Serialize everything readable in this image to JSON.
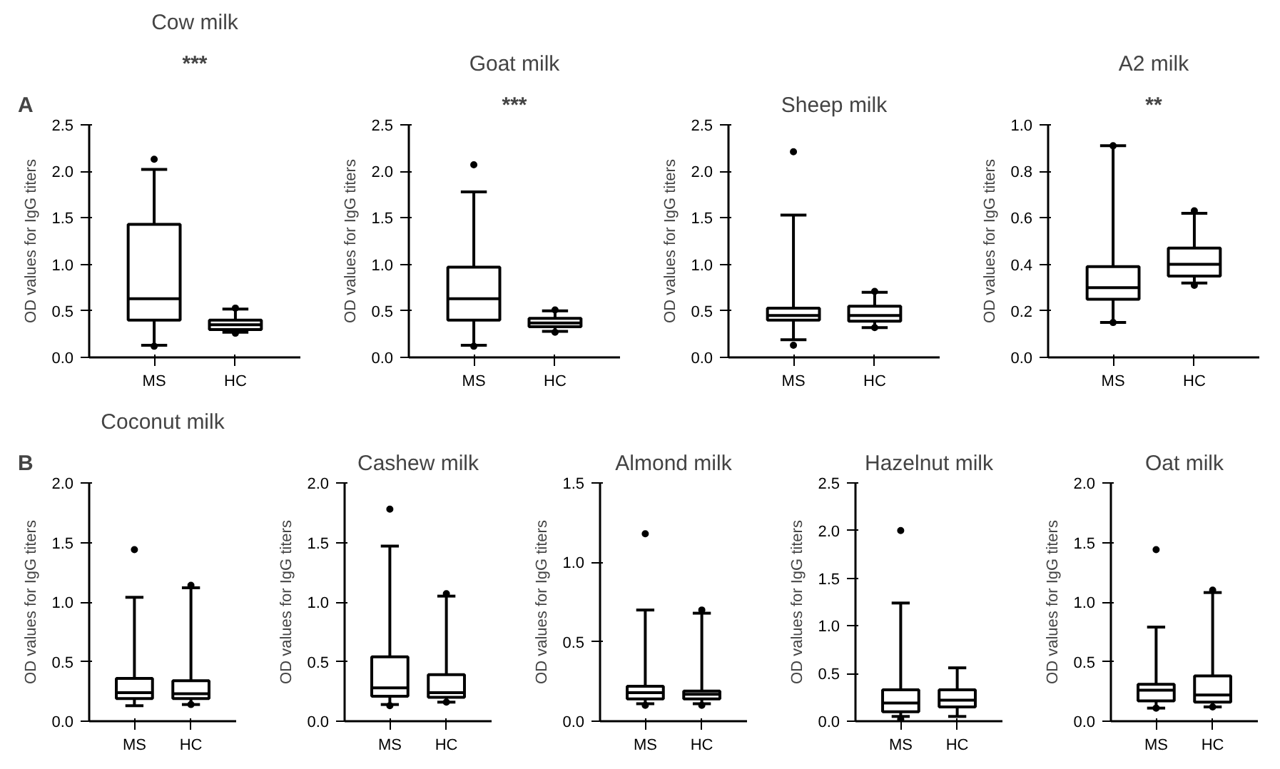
{
  "chart_data": [
    {
      "type": "box",
      "title": "Cow milk",
      "ylabel": "OD values for IgG titers",
      "categories": [
        "MS",
        "HC"
      ],
      "ylim": [
        0,
        2.5
      ],
      "yticks": [
        {
          "value": 0,
          "label": "0.0"
        },
        0.5,
        {
          "value": 1,
          "label": "1.0"
        },
        1.5,
        {
          "value": 2,
          "label": "2.0"
        },
        2.5
      ],
      "grid": false,
      "annotations": [
        "A",
        "***"
      ],
      "boxes": [
        {
          "low": 0.13,
          "q1": 0.4,
          "median": 0.63,
          "q3": 1.43,
          "high": 2.02,
          "outliers": [
            2.13,
            0.12
          ]
        },
        {
          "low": 0.27,
          "q1": 0.3,
          "median": 0.35,
          "q3": 0.4,
          "high": 0.52,
          "outliers": [
            0.53,
            0.26
          ]
        }
      ]
    },
    {
      "type": "box",
      "title": "Goat milk",
      "ylabel": "OD values for IgG titers",
      "categories": [
        "MS",
        "HC"
      ],
      "ylim": [
        0,
        2.5
      ],
      "yticks": [
        {
          "value": 0,
          "label": "0.0"
        },
        0.5,
        {
          "value": 1,
          "label": "1.0"
        },
        1.5,
        {
          "value": 2,
          "label": "2.0"
        },
        2.5
      ],
      "grid": false,
      "annotations": [
        "***"
      ],
      "boxes": [
        {
          "low": 0.13,
          "q1": 0.4,
          "median": 0.63,
          "q3": 0.97,
          "high": 1.78,
          "outliers": [
            2.07,
            0.12
          ]
        },
        {
          "low": 0.28,
          "q1": 0.33,
          "median": 0.37,
          "q3": 0.42,
          "high": 0.5,
          "outliers": [
            0.51,
            0.27
          ]
        }
      ]
    },
    {
      "type": "box",
      "title": "Sheep milk",
      "ylabel": "OD values for IgG titers",
      "categories": [
        "MS",
        "HC"
      ],
      "ylim": [
        0,
        2.5
      ],
      "yticks": [
        {
          "value": 0,
          "label": "0.0"
        },
        0.5,
        {
          "value": 1,
          "label": "1.0"
        },
        1.5,
        {
          "value": 2,
          "label": "2.0"
        },
        2.5
      ],
      "grid": false,
      "boxes": [
        {
          "low": 0.19,
          "q1": 0.4,
          "median": 0.45,
          "q3": 0.53,
          "high": 1.53,
          "outliers": [
            2.21,
            0.13
          ]
        },
        {
          "low": 0.32,
          "q1": 0.39,
          "median": 0.45,
          "q3": 0.55,
          "high": 0.7,
          "outliers": [
            0.71,
            0.32
          ]
        }
      ]
    },
    {
      "type": "box",
      "title": "A2 milk",
      "ylabel": "OD values for IgG titers",
      "categories": [
        "MS",
        "HC"
      ],
      "ylim": [
        0,
        1.0
      ],
      "yticks": [
        {
          "value": 0,
          "label": "0.0"
        },
        0.2,
        0.4,
        0.6,
        0.8,
        {
          "value": 1,
          "label": "1.0"
        }
      ],
      "grid": false,
      "annotations": [
        "**"
      ],
      "boxes": [
        {
          "low": 0.15,
          "q1": 0.25,
          "median": 0.3,
          "q3": 0.39,
          "high": 0.91,
          "outliers": [
            0.91,
            0.15
          ]
        },
        {
          "low": 0.32,
          "q1": 0.35,
          "median": 0.4,
          "q3": 0.47,
          "high": 0.62,
          "outliers": [
            0.63,
            0.31
          ]
        }
      ]
    },
    {
      "type": "box",
      "title": "Coconut milk",
      "ylabel": "OD values for IgG titers",
      "categories": [
        "MS",
        "HC"
      ],
      "ylim": [
        0,
        2.0
      ],
      "yticks": [
        {
          "value": 0,
          "label": "0.0"
        },
        0.5,
        {
          "value": 1,
          "label": "1.0"
        },
        1.5,
        {
          "value": 2,
          "label": "2.0"
        }
      ],
      "grid": false,
      "annotations": [
        "B"
      ],
      "boxes": [
        {
          "low": 0.13,
          "q1": 0.19,
          "median": 0.24,
          "q3": 0.36,
          "high": 1.04,
          "outliers": [
            1.44
          ]
        },
        {
          "low": 0.14,
          "q1": 0.19,
          "median": 0.23,
          "q3": 0.34,
          "high": 1.12,
          "outliers": [
            1.14,
            0.14
          ]
        }
      ]
    },
    {
      "type": "box",
      "title": "Cashew milk",
      "ylabel": "OD values for IgG titers",
      "categories": [
        "MS",
        "HC"
      ],
      "ylim": [
        0,
        2.0
      ],
      "yticks": [
        {
          "value": 0,
          "label": "0.0"
        },
        0.5,
        {
          "value": 1,
          "label": "1.0"
        },
        1.5,
        {
          "value": 2,
          "label": "2.0"
        }
      ],
      "grid": false,
      "boxes": [
        {
          "low": 0.14,
          "q1": 0.21,
          "median": 0.28,
          "q3": 0.54,
          "high": 1.47,
          "outliers": [
            1.78,
            0.13
          ]
        },
        {
          "low": 0.16,
          "q1": 0.2,
          "median": 0.24,
          "q3": 0.39,
          "high": 1.05,
          "outliers": [
            1.07,
            0.16
          ]
        }
      ]
    },
    {
      "type": "box",
      "title": "Almond milk",
      "ylabel": "OD values for IgG titers",
      "categories": [
        "MS",
        "HC"
      ],
      "ylim": [
        0,
        1.5
      ],
      "yticks": [
        {
          "value": 0,
          "label": "0.0"
        },
        0.5,
        {
          "value": 1,
          "label": "1.0"
        },
        1.5
      ],
      "grid": false,
      "boxes": [
        {
          "low": 0.11,
          "q1": 0.14,
          "median": 0.18,
          "q3": 0.22,
          "high": 0.7,
          "outliers": [
            1.18,
            0.1
          ]
        },
        {
          "low": 0.11,
          "q1": 0.14,
          "median": 0.17,
          "q3": 0.19,
          "high": 0.68,
          "outliers": [
            0.7,
            0.1
          ]
        }
      ]
    },
    {
      "type": "box",
      "title": "Hazelnut milk",
      "ylabel": "OD values for IgG titers",
      "categories": [
        "MS",
        "HC"
      ],
      "ylim": [
        0,
        2.5
      ],
      "yticks": [
        {
          "value": 0,
          "label": "0.0"
        },
        0.5,
        {
          "value": 1,
          "label": "1.0"
        },
        1.5,
        {
          "value": 2,
          "label": "2.0"
        },
        2.5
      ],
      "grid": false,
      "boxes": [
        {
          "low": 0.05,
          "q1": 0.1,
          "median": 0.19,
          "q3": 0.33,
          "high": 1.24,
          "outliers": [
            2.0,
            0.02
          ]
        },
        {
          "low": 0.05,
          "q1": 0.15,
          "median": 0.22,
          "q3": 0.33,
          "high": 0.56
        }
      ]
    },
    {
      "type": "box",
      "title": "Oat milk",
      "ylabel": "OD values for IgG titers",
      "categories": [
        "MS",
        "HC"
      ],
      "ylim": [
        0,
        2.0
      ],
      "yticks": [
        {
          "value": 0,
          "label": "0.0"
        },
        0.5,
        {
          "value": 1,
          "label": "1.0"
        },
        1.5,
        {
          "value": 2,
          "label": "2.0"
        }
      ],
      "grid": false,
      "boxes": [
        {
          "low": 0.11,
          "q1": 0.17,
          "median": 0.26,
          "q3": 0.31,
          "high": 0.79,
          "outliers": [
            1.44,
            0.11
          ]
        },
        {
          "low": 0.12,
          "q1": 0.16,
          "median": 0.22,
          "q3": 0.38,
          "high": 1.08,
          "outliers": [
            1.1,
            0.12
          ]
        }
      ]
    }
  ]
}
